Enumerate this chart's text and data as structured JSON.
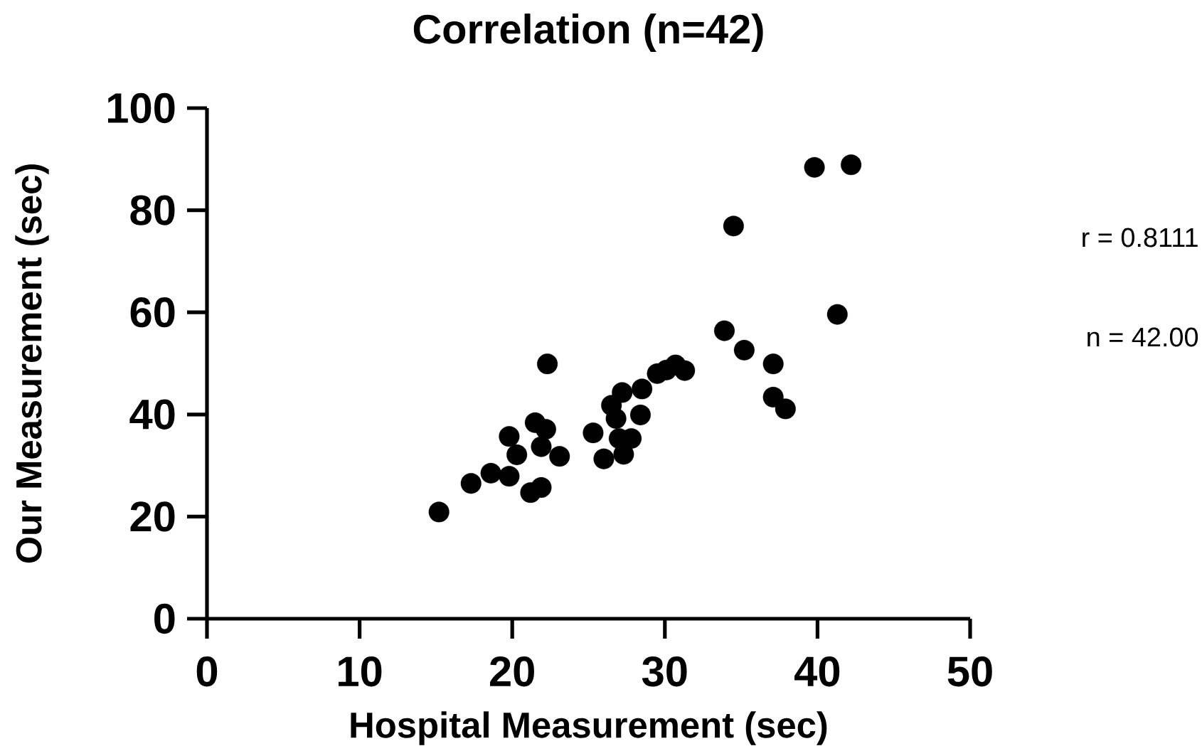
{
  "chart_data": {
    "type": "scatter",
    "title": "Correlation (n=42)",
    "xlabel": "Hospital Measurement (sec)",
    "ylabel": "Our Measurement (sec)",
    "x": [
      15.2,
      17.3,
      18.6,
      19.8,
      19.8,
      20.3,
      21.2,
      21.9,
      22.3,
      21.5,
      22.2,
      21.9,
      23.1,
      25.3,
      26.0,
      26.5,
      27.2,
      26.8,
      27.0,
      27.8,
      27.3,
      28.4,
      28.5,
      29.5,
      30.1,
      30.7,
      31.3,
      39.8,
      42.2,
      34.5,
      41.3,
      33.9,
      35.2,
      37.1,
      37.1,
      37.9
    ],
    "values": [
      20.9,
      26.5,
      28.5,
      27.9,
      35.7,
      32.1,
      24.7,
      25.7,
      49.9,
      38.4,
      37.1,
      33.7,
      31.8,
      36.4,
      31.3,
      41.8,
      44.3,
      39.2,
      35.3,
      35.3,
      32.2,
      39.9,
      45.0,
      48.0,
      48.7,
      49.7,
      48.6,
      88.4,
      88.9,
      76.9,
      59.6,
      56.4,
      52.6,
      49.9,
      43.4,
      41.1
    ],
    "color": "#000000",
    "marker": "circle",
    "xlim": [
      0,
      50
    ],
    "ylim": [
      0,
      100
    ],
    "xticks": [
      0,
      10,
      20,
      30,
      40,
      50
    ],
    "yticks": [
      0,
      20,
      40,
      60,
      80,
      100
    ],
    "annotations": [
      "r = 0.8111",
      "n = 42.00"
    ]
  }
}
